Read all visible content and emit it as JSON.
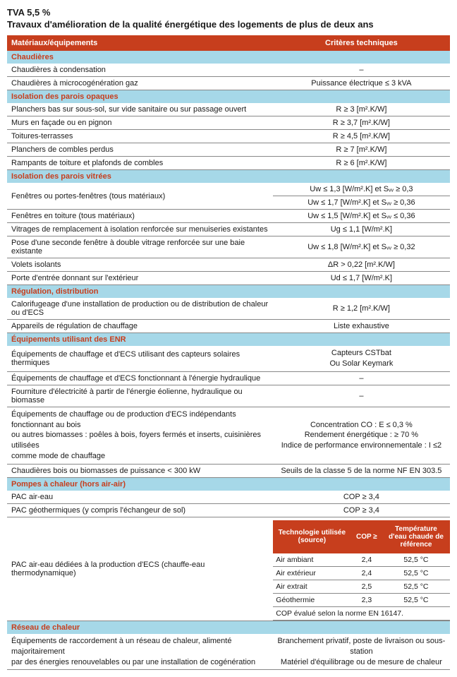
{
  "title": {
    "line1": "TVA 5,5 %",
    "line2": "Travaux d'amélioration de la qualité énergétique des logements de plus de deux ans"
  },
  "headers": {
    "materiaux": "Matériaux/équipements",
    "criteres": "Critères techniques"
  },
  "colors": {
    "header_bg": "#c73e1d",
    "section_bg": "#a6d8e8",
    "section_text": "#c73e1d",
    "border": "#888888",
    "text": "#1a1a1a"
  },
  "columns": {
    "left_pct": 60,
    "right_pct": 40
  },
  "sections": [
    {
      "name": "Chaudières",
      "rows": [
        {
          "label": "Chaudières à condensation",
          "crit": "–"
        },
        {
          "label": "Chaudières à microcogénération gaz",
          "crit": "Puissance électrique ≤ 3 kVA"
        }
      ]
    },
    {
      "name": "Isolation des parois opaques",
      "rows": [
        {
          "label": "Planchers bas sur sous-sol, sur vide sanitaire ou sur passage ouvert",
          "crit": "R ≥ 3 [m².K/W]"
        },
        {
          "label": "Murs en façade ou en pignon",
          "crit": "R ≥ 3,7 [m².K/W]"
        },
        {
          "label": "Toitures-terrasses",
          "crit": "R ≥ 4,5 [m².K/W]"
        },
        {
          "label": "Planchers de combles perdus",
          "crit": "R ≥ 7 [m².K/W]"
        },
        {
          "label": "Rampants de toiture et plafonds de combles",
          "crit": "R ≥ 6 [m².K/W]"
        }
      ]
    },
    {
      "name": "Isolation des parois vitrées",
      "rows": [
        {
          "label": "Fenêtres ou portes-fenêtres (tous matériaux)",
          "crit_lines": [
            "Uw ≤ 1,3 [W/m².K] et Sᵥᵥ ≥ 0,3",
            "Uw ≤ 1,7 [W/m².K] et Sᵥᵥ ≥ 0,36"
          ],
          "split": true
        },
        {
          "label": "Fenêtres en toiture (tous matériaux)",
          "crit": "Uw ≤ 1,5 [W/m².K] et Sᵥᵥ ≤ 0,36"
        },
        {
          "label": "Vitrages de remplacement à isolation renforcée sur menuiseries existantes",
          "crit": "Ug ≤ 1,1 [W/m².K]"
        },
        {
          "label": "Pose d'une seconde fenêtre à double vitrage renforcée sur une baie existante",
          "crit": "Uw ≤ 1,8 [W/m².K] et Sᵥᵥ ≥ 0,32"
        },
        {
          "label": "Volets isolants",
          "crit": "ΔR > 0,22 [m².K/W]"
        },
        {
          "label": "Porte d'entrée donnant sur l'extérieur",
          "crit": "Ud ≤ 1,7 [W/m².K]"
        }
      ]
    },
    {
      "name": "Régulation, distribution",
      "rows": [
        {
          "label": "Calorifugeage d'une installation de production ou de distribution de chaleur ou d'ECS",
          "crit": "R ≥ 1,2 [m².K/W]"
        },
        {
          "label": "Appareils de régulation de chauffage",
          "crit": "Liste exhaustive"
        }
      ]
    },
    {
      "name": "Équipements utilisant des ENR",
      "rows": [
        {
          "label": "Équipements de chauffage et d'ECS utilisant des capteurs solaires thermiques",
          "crit_lines": [
            "Capteurs CSTbat",
            "Ou Solar Keymark"
          ]
        },
        {
          "label": "Équipements de chauffage et d'ECS fonctionnant à l'énergie hydraulique",
          "crit": "–"
        },
        {
          "label": "Fourniture d'électricité à partir de l'énergie éolienne, hydraulique ou biomasse",
          "crit": "–"
        },
        {
          "label_lines": [
            "Équipements de chauffage ou de production d'ECS indépendants fonctionnant au bois",
            "ou autres biomasses : poêles à bois, foyers fermés et inserts, cuisinières utilisées",
            "comme mode de chauffage"
          ],
          "crit_lines": [
            "Concentration CO : E ≤ 0,3 %",
            "Rendement énergétique : ≥ 70 %",
            "Indice de performance environnementale : I ≤2"
          ]
        },
        {
          "label": "Chaudières bois ou biomasses de puissance < 300 kW",
          "crit": "Seuils de la classe 5 de la norme NF EN 303.5"
        }
      ]
    },
    {
      "name": "Pompes à chaleur (hors air-air)",
      "rows": [
        {
          "label": "PAC air-eau",
          "crit": "COP ≥ 3,4"
        },
        {
          "label": "PAC géothermiques (y compris l'échangeur de sol)",
          "crit": "COP ≥ 3,4"
        },
        {
          "label": "PAC air-eau dédiées à la production d'ECS (chauffe-eau thermodynamique)",
          "nested": true
        }
      ],
      "nested_table": {
        "headers": [
          "Technologie utilisée (source)",
          "COP ≥",
          "Température d'eau chaude de référence"
        ],
        "rows": [
          [
            "Air ambiant",
            "2,4",
            "52,5 °C"
          ],
          [
            "Air extérieur",
            "2,4",
            "52,5 °C"
          ],
          [
            "Air extrait",
            "2,5",
            "52,5 °C"
          ],
          [
            "Géothermie",
            "2,3",
            "52,5 °C"
          ]
        ],
        "note": "COP évalué selon la norme EN 16147.",
        "col_widths_pct": [
          44,
          18,
          38
        ]
      }
    },
    {
      "name": "Réseau de chaleur",
      "rows": [
        {
          "label_lines": [
            "Équipements de raccordement à un réseau de chaleur, alimenté majoritairement",
            "par des énergies renouvelables ou par une installation de cogénération"
          ],
          "crit_lines": [
            "Branchement privatif, poste de livraison ou sous-station",
            "Matériel d'équilibrage ou de mesure de chaleur"
          ]
        }
      ]
    }
  ]
}
